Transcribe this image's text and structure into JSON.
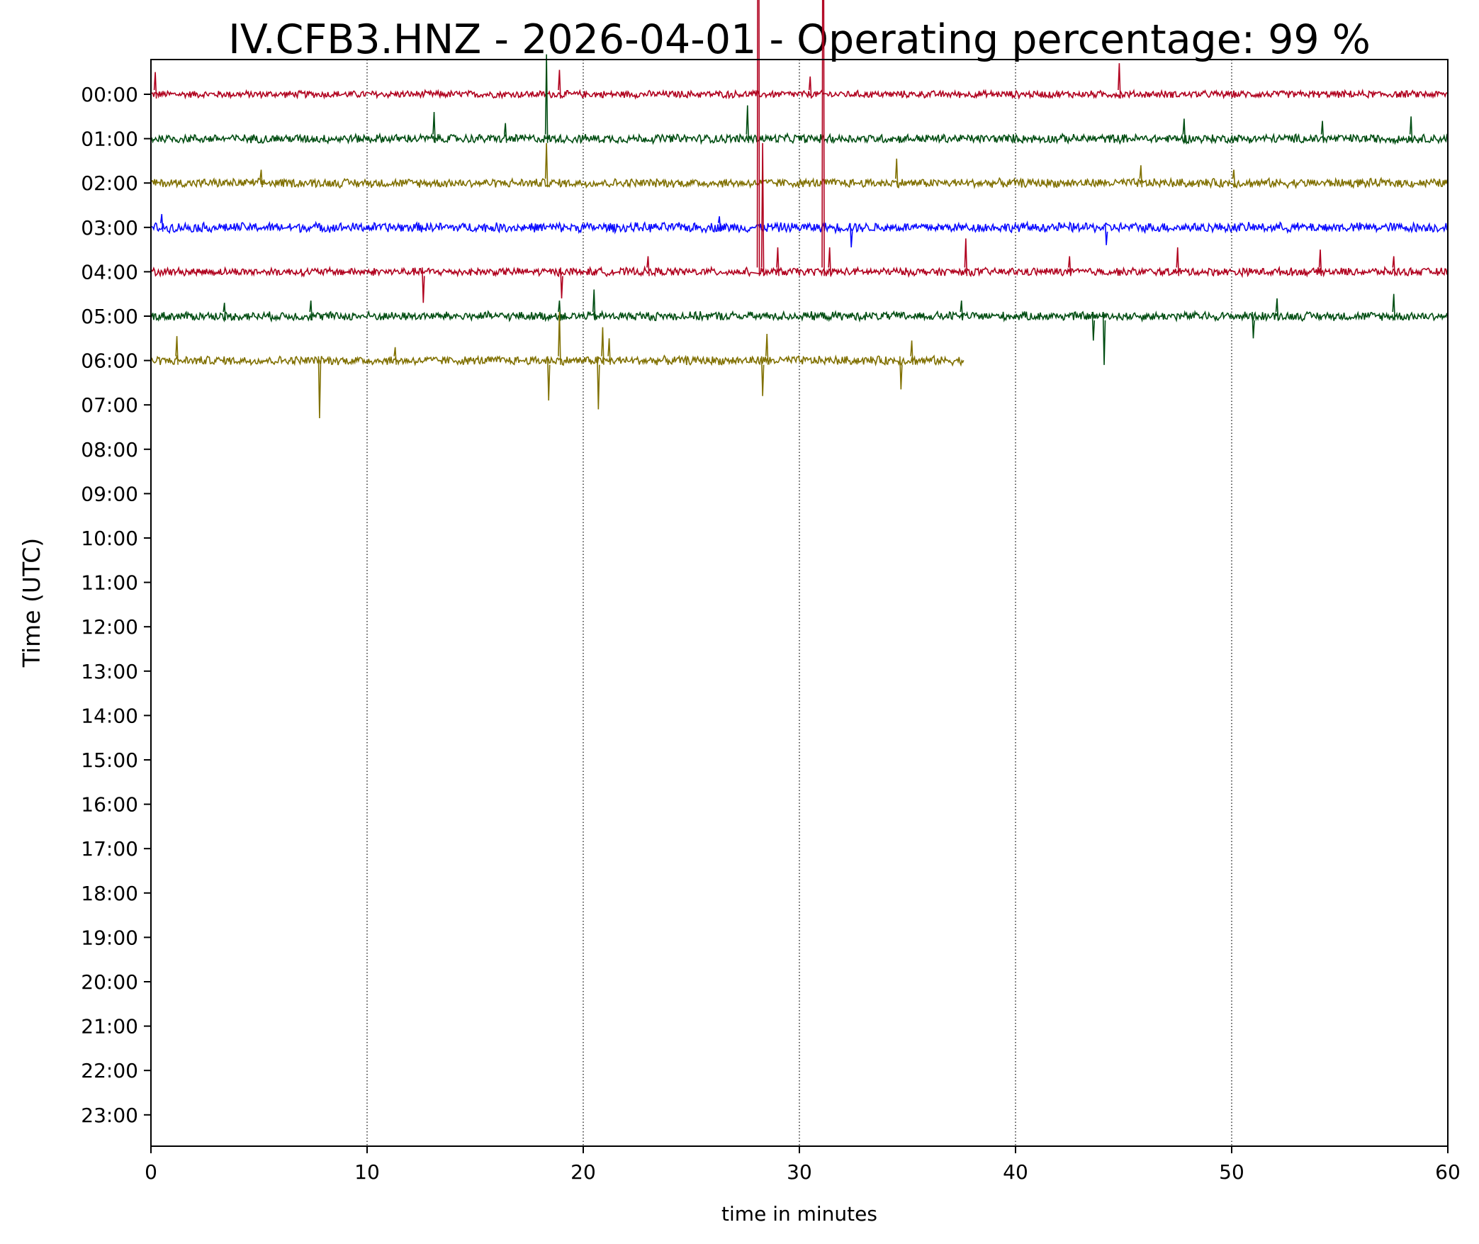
{
  "chart_data": {
    "type": "line",
    "title": "IV.CFB3.HNZ - 2026-04-01 - Operating percentage: 99 %",
    "xlabel": "time in minutes",
    "ylabel": "Time (UTC)",
    "xlim": [
      0,
      60
    ],
    "xticks": [
      "0",
      "10",
      "20",
      "30",
      "40",
      "50",
      "60"
    ],
    "grid": "vertical dotted at 10-minute ticks",
    "hour_labels": [
      "00:00",
      "01:00",
      "02:00",
      "03:00",
      "04:00",
      "05:00",
      "06:00",
      "07:00",
      "08:00",
      "09:00",
      "10:00",
      "11:00",
      "12:00",
      "13:00",
      "14:00",
      "15:00",
      "16:00",
      "17:00",
      "18:00",
      "19:00",
      "20:00",
      "21:00",
      "22:00",
      "23:00"
    ],
    "colors": [
      "#b0001e",
      "#004d12",
      "#807000",
      "#0a0aff"
    ],
    "series": [
      {
        "hour": "00:00",
        "color": "#b0001e",
        "end_minute": 60,
        "noise": 0.18,
        "spikes": [
          [
            0.2,
            0.5
          ],
          [
            18.9,
            0.55
          ],
          [
            30.5,
            0.4
          ],
          [
            44.8,
            0.7
          ]
        ]
      },
      {
        "hour": "01:00",
        "color": "#004d12",
        "end_minute": 60,
        "noise": 0.22,
        "spikes": [
          [
            13.1,
            0.6
          ],
          [
            16.4,
            0.35
          ],
          [
            18.3,
            1.9
          ],
          [
            27.6,
            0.75
          ],
          [
            47.8,
            0.45
          ],
          [
            54.2,
            0.4
          ],
          [
            58.3,
            0.5
          ]
        ]
      },
      {
        "hour": "02:00",
        "color": "#807000",
        "end_minute": 60,
        "noise": 0.22,
        "spikes": [
          [
            5.1,
            0.3
          ],
          [
            18.3,
            0.9
          ],
          [
            34.5,
            0.55
          ],
          [
            45.8,
            0.4
          ],
          [
            50.1,
            0.3
          ]
        ]
      },
      {
        "hour": "03:00",
        "color": "#0a0aff",
        "end_minute": 60,
        "noise": 0.24,
        "spikes": [
          [
            0.5,
            0.3
          ],
          [
            26.3,
            0.25
          ],
          [
            32.4,
            -0.45
          ],
          [
            44.2,
            -0.4
          ]
        ]
      },
      {
        "hour": "04:00",
        "color": "#b0001e",
        "end_minute": 60,
        "noise": 0.2,
        "spikes": [
          [
            12.6,
            -0.7
          ],
          [
            19.0,
            -0.6
          ],
          [
            23.0,
            0.35
          ],
          [
            28.1,
            17.4
          ],
          [
            28.3,
            2.9
          ],
          [
            29.0,
            0.55
          ],
          [
            31.1,
            13.6
          ],
          [
            31.4,
            0.55
          ],
          [
            37.7,
            0.75
          ],
          [
            42.5,
            0.35
          ],
          [
            47.5,
            0.55
          ],
          [
            54.1,
            0.5
          ],
          [
            57.5,
            0.35
          ]
        ],
        "gap": [
          27.8,
          28.2
        ]
      },
      {
        "hour": "05:00",
        "color": "#004d12",
        "end_minute": 60,
        "noise": 0.22,
        "spikes": [
          [
            3.4,
            0.3
          ],
          [
            7.4,
            0.35
          ],
          [
            18.9,
            0.35
          ],
          [
            20.5,
            0.6
          ],
          [
            37.5,
            0.35
          ],
          [
            43.6,
            -0.55
          ],
          [
            44.1,
            -1.1
          ],
          [
            51.0,
            -0.5
          ],
          [
            52.1,
            0.4
          ],
          [
            57.5,
            0.5
          ]
        ]
      },
      {
        "hour": "06:00",
        "color": "#807000",
        "end_minute": 37.6,
        "noise": 0.22,
        "spikes": [
          [
            1.2,
            0.55
          ],
          [
            7.8,
            -1.3
          ],
          [
            11.3,
            0.3
          ],
          [
            18.4,
            -0.9
          ],
          [
            18.9,
            1.1
          ],
          [
            20.7,
            -1.1
          ],
          [
            20.9,
            0.75
          ],
          [
            21.2,
            0.5
          ],
          [
            28.3,
            -0.8
          ],
          [
            28.5,
            0.6
          ],
          [
            34.7,
            -0.65
          ],
          [
            35.2,
            0.45
          ]
        ]
      }
    ]
  }
}
